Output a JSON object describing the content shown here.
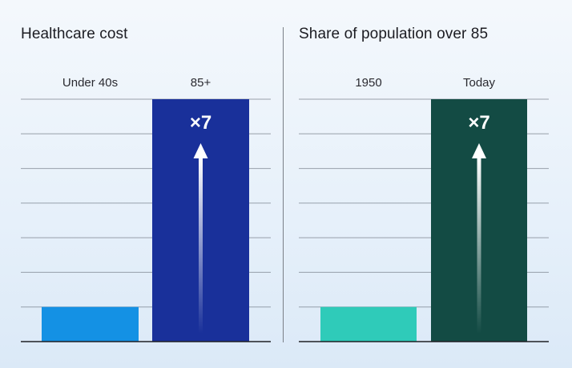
{
  "chart_data": [
    {
      "type": "bar",
      "title": "Healthcare cost",
      "categories": [
        "Under 40s",
        "85+"
      ],
      "values": [
        1,
        7
      ],
      "ylim": [
        0,
        7
      ],
      "grid": true,
      "bar_colors": [
        "#1491e4",
        "#19309a"
      ],
      "annotation": {
        "text": "×7",
        "category": "85+",
        "arrow": "up"
      }
    },
    {
      "type": "bar",
      "title": "Share of population over 85",
      "categories": [
        "1950",
        "Today"
      ],
      "values": [
        1,
        7
      ],
      "ylim": [
        0,
        7
      ],
      "grid": true,
      "bar_colors": [
        "#2fcbb9",
        "#134b44"
      ],
      "annotation": {
        "text": "×7",
        "category": "Today",
        "arrow": "up"
      }
    }
  ]
}
